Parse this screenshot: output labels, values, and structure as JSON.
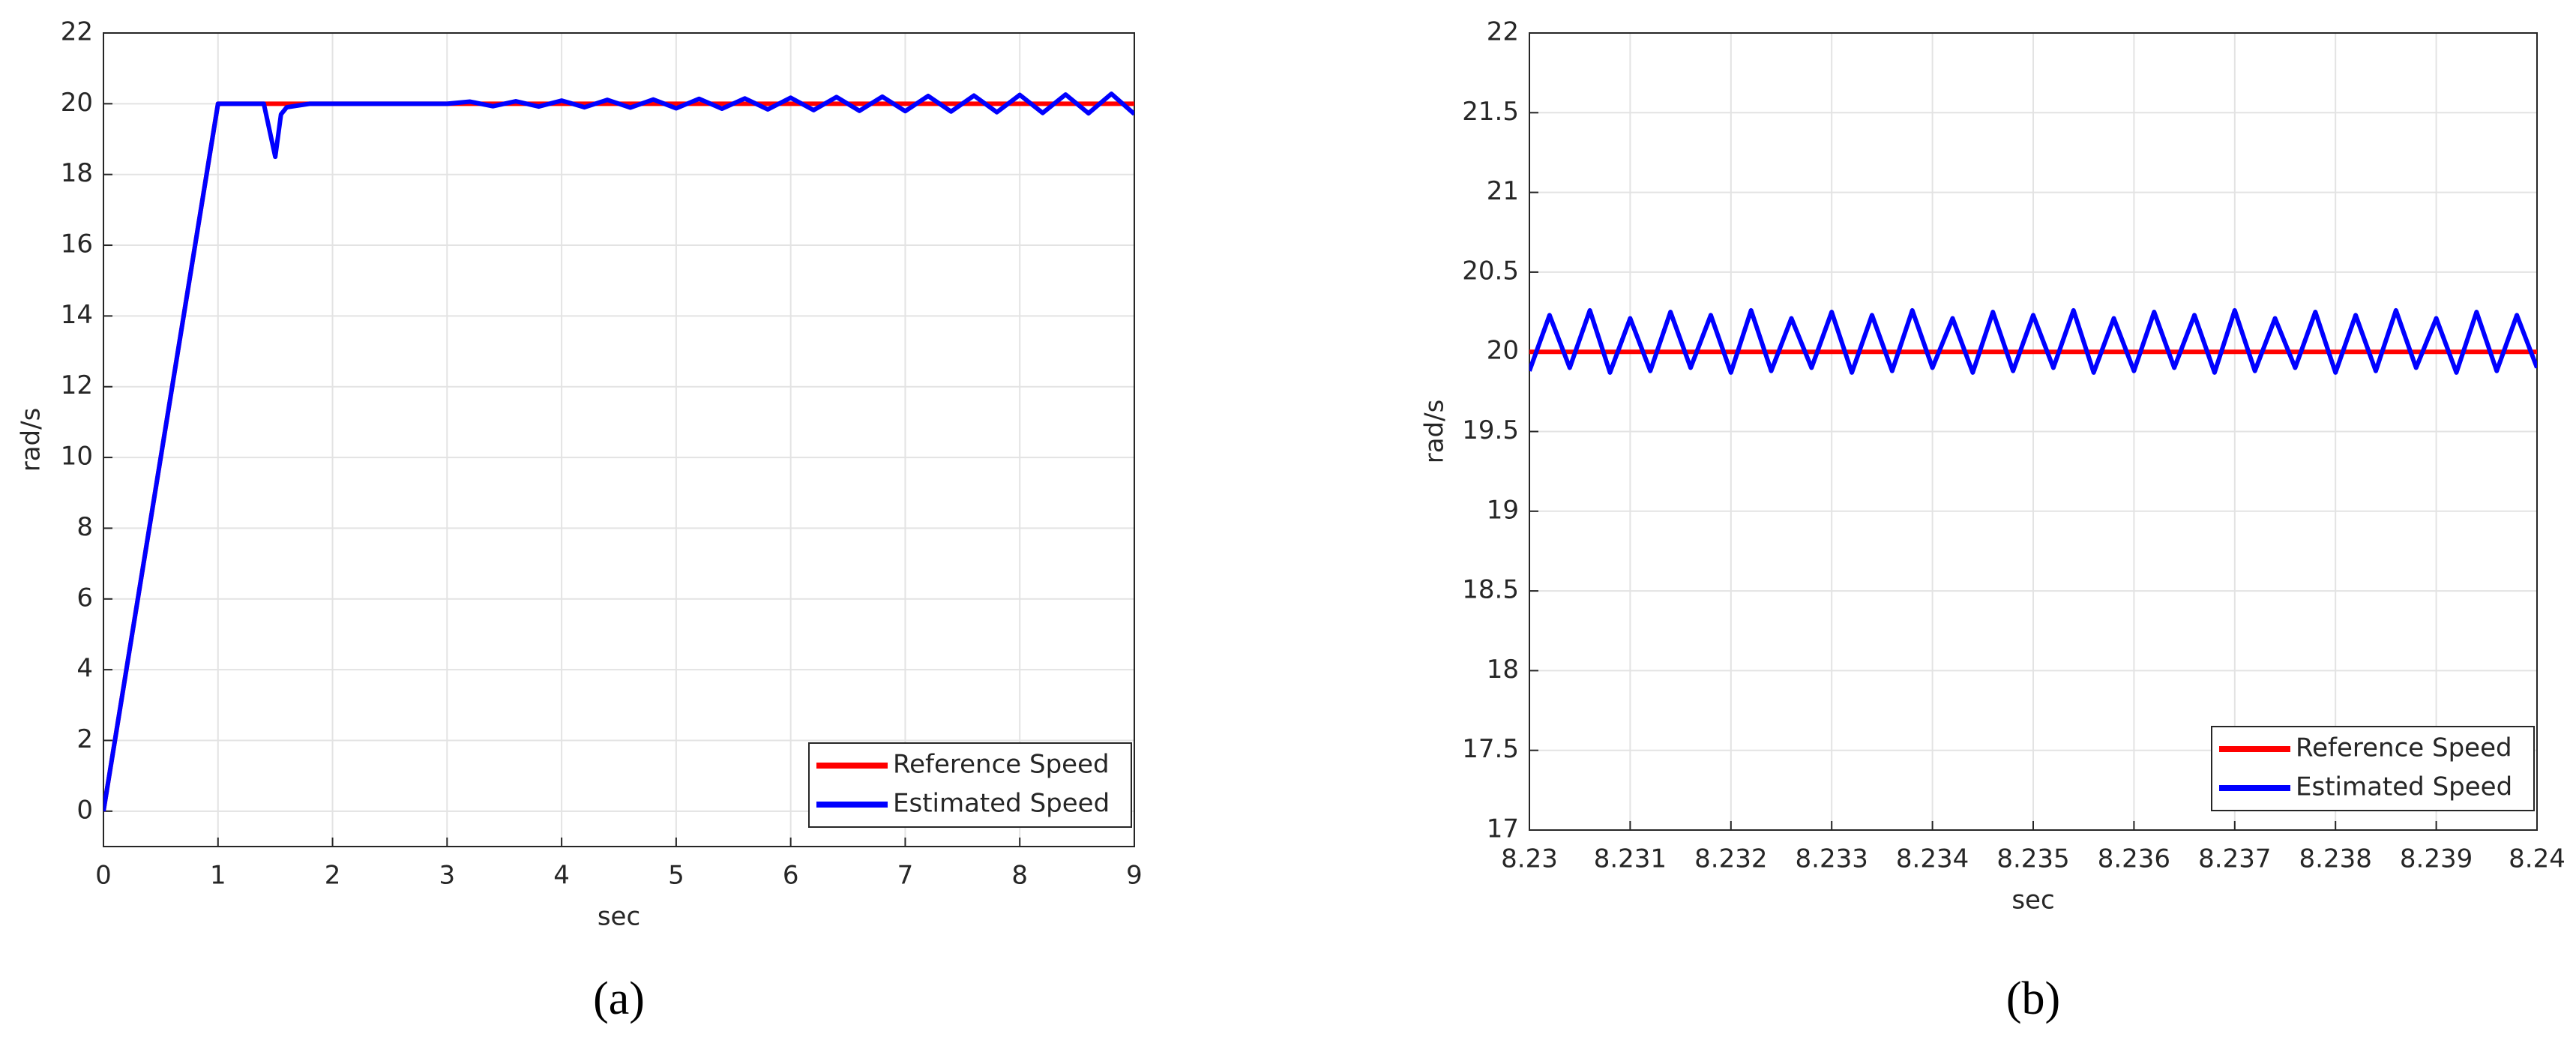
{
  "chart_data": [
    {
      "type": "line",
      "caption": "(a)",
      "x_label": "sec",
      "y_label": "rad/s",
      "xlim": [
        0,
        9
      ],
      "xticks": [
        0,
        1,
        2,
        3,
        4,
        5,
        6,
        7,
        8,
        9
      ],
      "ylim": [
        -1,
        22
      ],
      "yticks": [
        0,
        2,
        4,
        6,
        8,
        10,
        12,
        14,
        16,
        18,
        20,
        22
      ],
      "grid": true,
      "legend": "lower right",
      "x": [
        0,
        1,
        1.4,
        1.5,
        1.55,
        1.6,
        1.8,
        2,
        2.5,
        3,
        3.2,
        3.4,
        3.6,
        3.8,
        4.0,
        4.2,
        4.4,
        4.6,
        4.8,
        5.0,
        5.2,
        5.4,
        5.6,
        5.8,
        6.0,
        6.2,
        6.4,
        6.6,
        6.8,
        7.0,
        7.2,
        7.4,
        7.6,
        7.8,
        8.0,
        8.2,
        8.4,
        8.6,
        8.8,
        9.0
      ],
      "series": [
        {
          "name": "Reference Speed",
          "color": "#ff0000",
          "values": [
            0,
            20,
            20,
            20,
            20,
            20,
            20,
            20,
            20,
            20,
            20,
            20,
            20,
            20,
            20,
            20,
            20,
            20,
            20,
            20,
            20,
            20,
            20,
            20,
            20,
            20,
            20,
            20,
            20,
            20,
            20,
            20,
            20,
            20,
            20,
            20,
            20,
            20,
            20,
            20
          ]
        },
        {
          "name": "Estimated Speed",
          "color": "#0000ff",
          "values": [
            0,
            20,
            20,
            18.5,
            19.7,
            19.9,
            20,
            20,
            20,
            20,
            20.06,
            19.93,
            20.07,
            19.92,
            20.09,
            19.9,
            20.11,
            19.89,
            20.12,
            19.87,
            20.14,
            19.86,
            20.15,
            19.84,
            20.17,
            19.82,
            20.19,
            19.8,
            20.2,
            19.79,
            20.22,
            19.78,
            20.23,
            19.76,
            20.25,
            19.74,
            20.26,
            19.73,
            20.28,
            19.71
          ]
        }
      ]
    },
    {
      "type": "line",
      "caption": "(b)",
      "x_label": "sec",
      "y_label": "rad/s",
      "xlim": [
        8.23,
        8.24
      ],
      "xticks": [
        8.23,
        8.231,
        8.232,
        8.233,
        8.234,
        8.235,
        8.236,
        8.237,
        8.238,
        8.239,
        8.24
      ],
      "ylim": [
        17,
        22
      ],
      "yticks": [
        17,
        17.5,
        18,
        18.5,
        19,
        19.5,
        20,
        20.5,
        21,
        21.5,
        22
      ],
      "grid": true,
      "legend": "lower right",
      "series": [
        {
          "name": "Reference Speed",
          "color": "#ff0000",
          "x": [
            8.23,
            8.24
          ],
          "values": [
            20,
            20
          ]
        },
        {
          "name": "Estimated Speed",
          "color": "#0000ff",
          "x": [
            8.23,
            8.2302,
            8.2304,
            8.2306,
            8.2308,
            8.231,
            8.2312,
            8.2314,
            8.2316,
            8.2318,
            8.232,
            8.2322,
            8.2324,
            8.2326,
            8.2328,
            8.233,
            8.2332,
            8.2334,
            8.2336,
            8.2338,
            8.234,
            8.2342,
            8.2344,
            8.2346,
            8.2348,
            8.235,
            8.2352,
            8.2354,
            8.2356,
            8.2358,
            8.236,
            8.2362,
            8.2364,
            8.2366,
            8.2368,
            8.237,
            8.2372,
            8.2374,
            8.2376,
            8.2378,
            8.238,
            8.2382,
            8.2384,
            8.2386,
            8.2388,
            8.239,
            8.2392,
            8.2394,
            8.2396,
            8.2398,
            8.24
          ],
          "values": [
            19.88,
            20.23,
            19.9,
            20.26,
            19.87,
            20.21,
            19.88,
            20.25,
            19.9,
            20.23,
            19.87,
            20.26,
            19.88,
            20.21,
            19.9,
            20.25,
            19.87,
            20.23,
            19.88,
            20.26,
            19.9,
            20.21,
            19.87,
            20.25,
            19.88,
            20.23,
            19.9,
            20.26,
            19.87,
            20.21,
            19.88,
            20.25,
            19.9,
            20.23,
            19.87,
            20.26,
            19.88,
            20.21,
            19.9,
            20.25,
            19.87,
            20.23,
            19.88,
            20.26,
            19.9,
            20.21,
            19.87,
            20.25,
            19.88,
            20.23,
            19.9
          ]
        }
      ]
    }
  ]
}
